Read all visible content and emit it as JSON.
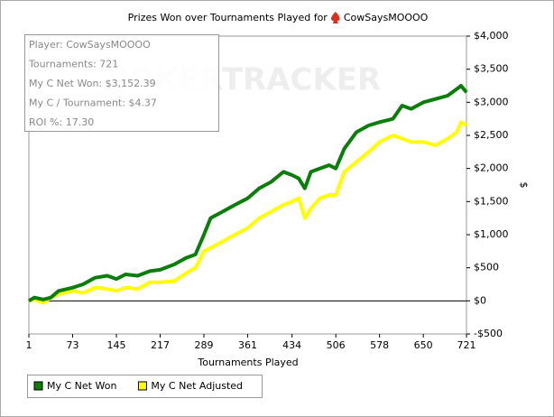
{
  "chart_data": {
    "type": "line",
    "title": "Prizes Won over Tournaments Played for",
    "player": "CowSaysMOOOO",
    "watermark": "POKERTRACKER",
    "info": [
      "Player: CowSaysMOOOO",
      "Tournaments: 721",
      "My C Net Won: $3,152.39",
      "My C / Tournament: $4.37",
      "ROI %: 17.30"
    ],
    "x_label": "Tournaments Played",
    "y_label": "$",
    "x": [
      1,
      10,
      25,
      37,
      50,
      73,
      90,
      110,
      130,
      145,
      160,
      180,
      200,
      217,
      240,
      260,
      275,
      289,
      300,
      320,
      340,
      361,
      380,
      400,
      420,
      434,
      445,
      455,
      465,
      480,
      495,
      506,
      520,
      540,
      560,
      578,
      600,
      615,
      630,
      650,
      670,
      690,
      705,
      712,
      721
    ],
    "series": [
      {
        "name": "My C Net Won",
        "color": "#0a7d0a",
        "values": [
          0,
          50,
          20,
          50,
          150,
          200,
          250,
          350,
          380,
          330,
          400,
          380,
          450,
          470,
          550,
          650,
          700,
          1000,
          1250,
          1350,
          1450,
          1550,
          1700,
          1800,
          1950,
          1900,
          1850,
          1700,
          1950,
          2000,
          2050,
          2000,
          2300,
          2550,
          2650,
          2700,
          2750,
          2950,
          2900,
          3000,
          3050,
          3100,
          3200,
          3250,
          3150
        ]
      },
      {
        "name": "My C Net Adjusted",
        "color": "#ffff00",
        "values": [
          0,
          20,
          -30,
          50,
          100,
          150,
          120,
          200,
          180,
          150,
          200,
          180,
          280,
          280,
          300,
          420,
          500,
          750,
          800,
          900,
          1000,
          1100,
          1250,
          1350,
          1450,
          1500,
          1550,
          1250,
          1400,
          1550,
          1600,
          1600,
          1950,
          2100,
          2250,
          2400,
          2500,
          2450,
          2400,
          2400,
          2350,
          2450,
          2550,
          2700,
          2650
        ]
      }
    ],
    "xlim": [
      1,
      721
    ],
    "xticks": [
      1,
      73,
      145,
      217,
      289,
      361,
      434,
      506,
      578,
      650,
      721
    ],
    "ylim": [
      -500,
      4000
    ],
    "yticks": [
      {
        "value": -500,
        "label": "-$500"
      },
      {
        "value": 0,
        "label": "$0"
      },
      {
        "value": 500,
        "label": "$500"
      },
      {
        "value": 1000,
        "label": "$1,000"
      },
      {
        "value": 1500,
        "label": "$1,500"
      },
      {
        "value": 2000,
        "label": "$2,000"
      },
      {
        "value": 2500,
        "label": "$2,500"
      },
      {
        "value": 3000,
        "label": "$3,000"
      },
      {
        "value": 3500,
        "label": "$3,500"
      },
      {
        "value": 4000,
        "label": "$4,000"
      }
    ],
    "zero_line": true
  }
}
